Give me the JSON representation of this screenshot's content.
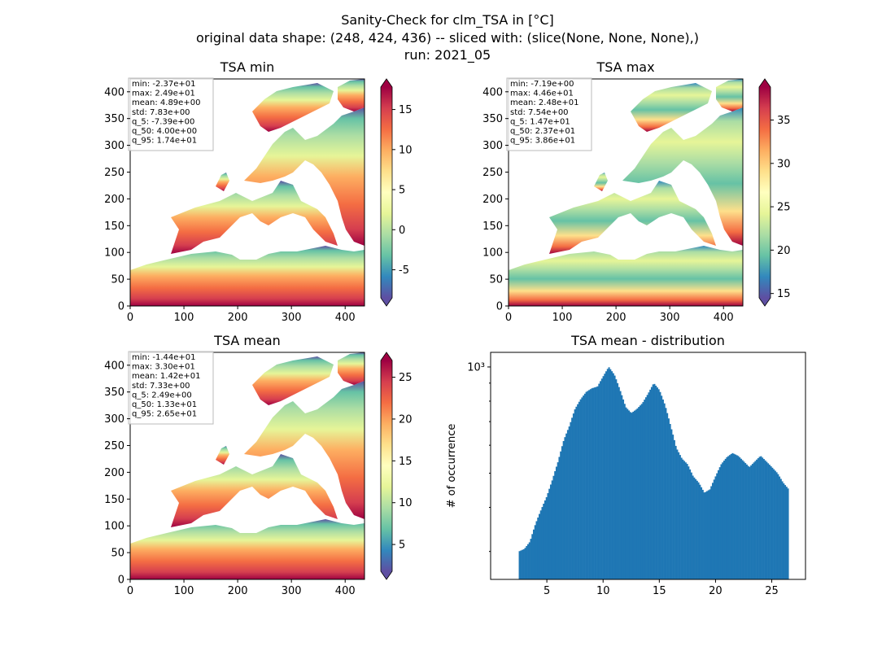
{
  "figure": {
    "title_lines": [
      "Sanity-Check for clm_TSA in [°C]",
      "original data shape: (248, 424, 436) -- sliced with: (slice(None, None, None),)",
      "run: 2021_05"
    ]
  },
  "chart_data": [
    {
      "type": "heatmap",
      "title": "TSA min",
      "xlim": [
        0,
        436
      ],
      "ylim": [
        0,
        424
      ],
      "xticks": [
        "0",
        "100",
        "200",
        "300",
        "400"
      ],
      "yticks": [
        "0",
        "50",
        "100",
        "150",
        "200",
        "250",
        "300",
        "350",
        "400"
      ],
      "colormap": "Spectral_r",
      "colorbar": {
        "range": [
          -8.5,
          17.8
        ],
        "ticks": [
          "-5",
          "0",
          "5",
          "10",
          "15"
        ],
        "tick_values": [
          -5,
          0,
          5,
          10,
          15
        ]
      },
      "stats": [
        "min: -2.37e+01",
        "max: 2.49e+01",
        "mean: 4.89e+00",
        "std: 7.83e+00",
        "q_5: -7.39e+00",
        "q_50: 4.00e+00",
        "q_95: 1.74e+01"
      ]
    },
    {
      "type": "heatmap",
      "title": "TSA max",
      "xlim": [
        0,
        436
      ],
      "ylim": [
        0,
        424
      ],
      "xticks": [
        "0",
        "100",
        "200",
        "300",
        "400"
      ],
      "yticks": [
        "0",
        "50",
        "100",
        "150",
        "200",
        "250",
        "300",
        "350",
        "400"
      ],
      "colormap": "Spectral_r",
      "colorbar": {
        "range": [
          14.5,
          38.8
        ],
        "ticks": [
          "15",
          "20",
          "25",
          "30",
          "35"
        ],
        "tick_values": [
          15,
          20,
          25,
          30,
          35
        ]
      },
      "stats": [
        "min: -7.19e+00",
        "max: 4.46e+01",
        "mean: 2.48e+01",
        "std: 7.54e+00",
        "q_5: 1.47e+01",
        "q_50: 2.37e+01",
        "q_95: 3.86e+01"
      ]
    },
    {
      "type": "heatmap",
      "title": "TSA mean",
      "xlim": [
        0,
        436
      ],
      "ylim": [
        0,
        424
      ],
      "xticks": [
        "0",
        "100",
        "200",
        "300",
        "400"
      ],
      "yticks": [
        "0",
        "50",
        "100",
        "150",
        "200",
        "250",
        "300",
        "350",
        "400"
      ],
      "colormap": "Spectral_r",
      "colorbar": {
        "range": [
          1.8,
          27.0
        ],
        "ticks": [
          "5",
          "10",
          "15",
          "20",
          "25"
        ],
        "tick_values": [
          5,
          10,
          15,
          20,
          25
        ]
      },
      "stats": [
        "min: -1.44e+01",
        "max: 3.30e+01",
        "mean: 1.42e+01",
        "std: 7.33e+00",
        "q_5: 2.49e+00",
        "q_50: 1.33e+01",
        "q_95: 2.65e+01"
      ]
    },
    {
      "type": "bar",
      "title": "TSA mean - distribution",
      "ylabel": "# of occurrence",
      "xlabel": "",
      "yscale": "log",
      "xlim": [
        0,
        28
      ],
      "ylim": [
        250,
        1100
      ],
      "xticks": [
        "5",
        "10",
        "15",
        "20",
        "25"
      ],
      "xtick_values": [
        5,
        10,
        15,
        20,
        25
      ],
      "ytick_label": "10³",
      "ytick_value": 1000,
      "color": "#1f77b4",
      "bin_range": [
        2.5,
        26.5
      ],
      "shape_points": [
        [
          2.5,
          300
        ],
        [
          3.0,
          305
        ],
        [
          3.5,
          320
        ],
        [
          4.0,
          360
        ],
        [
          4.5,
          395
        ],
        [
          5.0,
          430
        ],
        [
          5.5,
          480
        ],
        [
          6.0,
          540
        ],
        [
          6.5,
          620
        ],
        [
          7.0,
          680
        ],
        [
          7.5,
          760
        ],
        [
          8.0,
          810
        ],
        [
          8.5,
          850
        ],
        [
          9.0,
          870
        ],
        [
          9.5,
          880
        ],
        [
          10.0,
          940
        ],
        [
          10.5,
          1000
        ],
        [
          11.0,
          950
        ],
        [
          11.5,
          860
        ],
        [
          12.0,
          770
        ],
        [
          12.5,
          740
        ],
        [
          13.0,
          760
        ],
        [
          13.5,
          790
        ],
        [
          14.0,
          840
        ],
        [
          14.5,
          900
        ],
        [
          15.0,
          860
        ],
        [
          15.5,
          780
        ],
        [
          16.0,
          680
        ],
        [
          16.5,
          590
        ],
        [
          17.0,
          550
        ],
        [
          17.5,
          530
        ],
        [
          18.0,
          490
        ],
        [
          18.5,
          470
        ],
        [
          19.0,
          440
        ],
        [
          19.5,
          450
        ],
        [
          20.0,
          490
        ],
        [
          20.5,
          530
        ],
        [
          21.0,
          555
        ],
        [
          21.5,
          570
        ],
        [
          22.0,
          560
        ],
        [
          22.5,
          540
        ],
        [
          23.0,
          520
        ],
        [
          23.5,
          540
        ],
        [
          24.0,
          560
        ],
        [
          24.5,
          540
        ],
        [
          25.0,
          520
        ],
        [
          25.5,
          500
        ],
        [
          26.0,
          470
        ],
        [
          26.5,
          450
        ]
      ]
    }
  ]
}
